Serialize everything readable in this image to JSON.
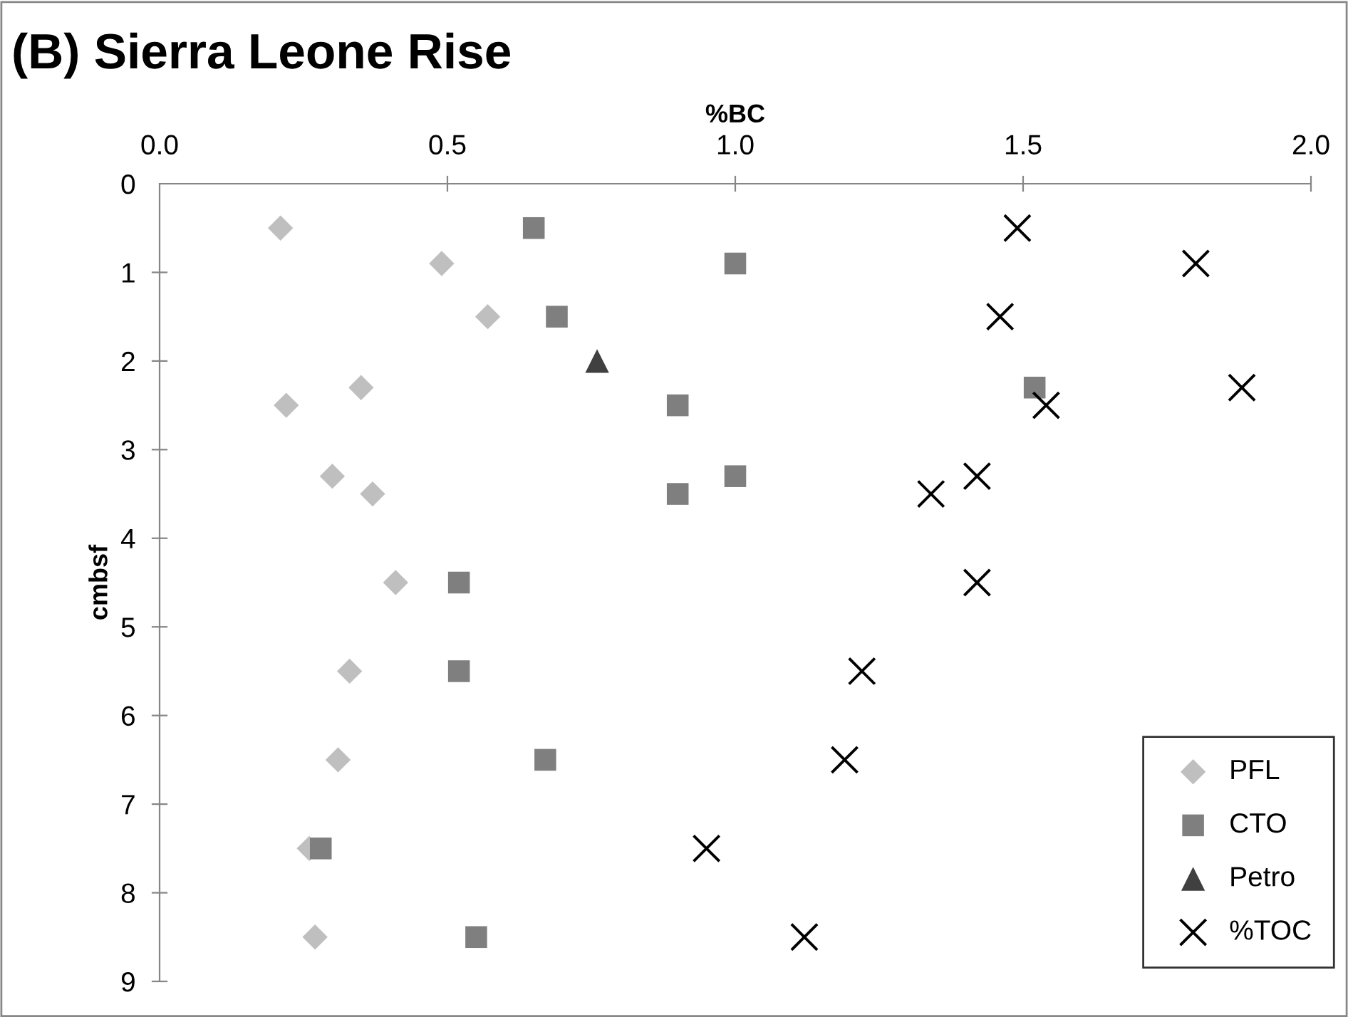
{
  "chart_data": {
    "type": "scatter",
    "title": "(B) Sierra Leone Rise",
    "xlabel": "%BC",
    "ylabel": "cmbsf",
    "xlim": [
      0,
      2.0
    ],
    "xticks": [
      {
        "value": 0,
        "label": "0.0"
      },
      0.5,
      {
        "value": 1,
        "label": "1.0"
      },
      1.5,
      {
        "value": 2,
        "label": "2.0"
      }
    ],
    "ylim": [
      9,
      0
    ],
    "yticks": [
      0,
      1,
      2,
      3,
      4,
      5,
      6,
      7,
      8,
      9
    ],
    "grid": false,
    "legend": "bottom right",
    "series": [
      {
        "name": "PFL",
        "color": "#bfbfbf",
        "marker": "diamond",
        "x": [
          0.21,
          0.49,
          0.57,
          0.35,
          0.22,
          0.3,
          0.37,
          0.41,
          0.33,
          0.31,
          0.26,
          0.27
        ],
        "values": [
          0.5,
          0.9,
          1.5,
          2.3,
          2.5,
          3.3,
          3.5,
          4.5,
          5.5,
          6.5,
          7.5,
          8.5
        ]
      },
      {
        "name": "CTO",
        "color": "#7f7f7f",
        "marker": "square",
        "x": [
          0.65,
          1.0,
          0.69,
          1.52,
          0.9,
          1.0,
          0.9,
          0.52,
          0.52,
          0.67,
          0.28,
          0.55
        ],
        "values": [
          0.5,
          0.9,
          1.5,
          2.3,
          2.5,
          3.3,
          3.5,
          4.5,
          5.5,
          6.5,
          7.5,
          8.5
        ]
      },
      {
        "name": "Petro",
        "color": "#404040",
        "marker": "triangle",
        "x": [
          0.76
        ],
        "values": [
          2.0
        ]
      },
      {
        "name": "%TOC",
        "color": "#000000",
        "marker": "cross",
        "x": [
          1.49,
          1.8,
          1.46,
          1.88,
          1.54,
          1.42,
          1.34,
          1.42,
          1.22,
          1.19,
          0.95,
          1.12
        ],
        "values": [
          0.5,
          0.9,
          1.5,
          2.3,
          2.5,
          3.3,
          3.5,
          4.5,
          5.5,
          6.5,
          7.5,
          8.5
        ]
      }
    ]
  }
}
